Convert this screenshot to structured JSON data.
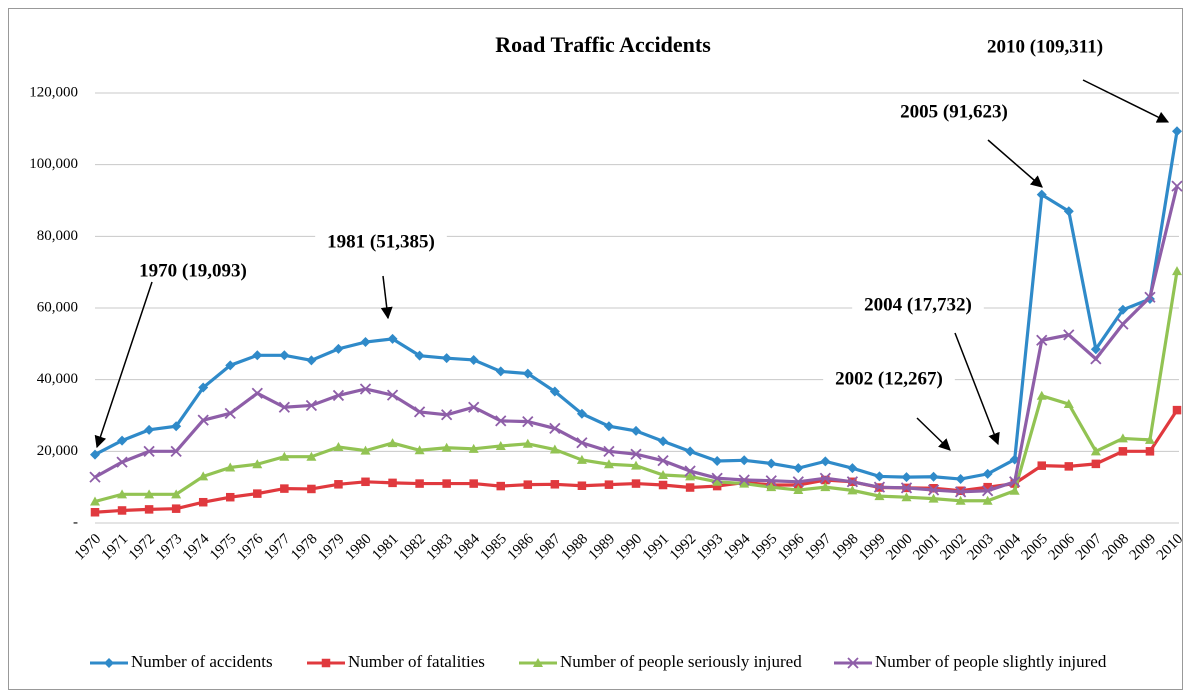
{
  "chart_data": {
    "type": "line",
    "title": "Road Traffic Accidents",
    "categories": [
      "1970",
      "1971",
      "1972",
      "1973",
      "1974",
      "1975",
      "1976",
      "1977",
      "1978",
      "1979",
      "1980",
      "1981",
      "1982",
      "1983",
      "1984",
      "1985",
      "1986",
      "1987",
      "1988",
      "1989",
      "1990",
      "1991",
      "1992",
      "1993",
      "1994",
      "1995",
      "1996",
      "1997",
      "1998",
      "1999",
      "2000",
      "2001",
      "2002",
      "2003",
      "2004",
      "2005",
      "2006",
      "2007",
      "2008",
      "2009",
      "2010"
    ],
    "series": [
      {
        "name": "Number of accidents",
        "color": "#2f8ac9",
        "marker": "diamond",
        "values": [
          19093,
          23000,
          26000,
          27000,
          37800,
          44000,
          46800,
          46800,
          45400,
          48600,
          50500,
          51385,
          46700,
          46000,
          45500,
          42300,
          41700,
          36700,
          30500,
          27000,
          25700,
          22800,
          20000,
          17300,
          17500,
          16600,
          15300,
          17200,
          15300,
          13000,
          12800,
          12900,
          12267,
          13700,
          17732,
          91623,
          87000,
          48500,
          59500,
          62500,
          109311
        ]
      },
      {
        "name": "Number of fatalities",
        "color": "#e0393e",
        "marker": "square",
        "values": [
          3000,
          3500,
          3800,
          4000,
          5800,
          7200,
          8200,
          9600,
          9500,
          10800,
          11500,
          11200,
          11000,
          11000,
          11000,
          10300,
          10700,
          10800,
          10400,
          10700,
          11000,
          10600,
          9900,
          10300,
          11300,
          10600,
          10600,
          12000,
          11500,
          9900,
          9800,
          9700,
          9000,
          10000,
          11000,
          16000,
          15800,
          16500,
          20000,
          20000,
          31500
        ]
      },
      {
        "name": "Number of people seriously injured",
        "color": "#92c353",
        "marker": "triangle",
        "values": [
          6000,
          8000,
          8000,
          8000,
          13000,
          15500,
          16400,
          18500,
          18500,
          21200,
          20200,
          22300,
          20300,
          21000,
          20700,
          21500,
          22100,
          20500,
          17600,
          16400,
          16000,
          13400,
          13000,
          11500,
          11000,
          10000,
          9200,
          10000,
          9100,
          7500,
          7200,
          6800,
          6200,
          6200,
          9000,
          35500,
          33200,
          20000,
          23600,
          23200,
          70300
        ]
      },
      {
        "name": "Number of people slightly injured",
        "color": "#8e5ea8",
        "marker": "x",
        "values": [
          12800,
          17000,
          20000,
          20000,
          28700,
          30600,
          36200,
          32300,
          32800,
          35600,
          37400,
          35700,
          31000,
          30200,
          32300,
          28500,
          28300,
          26400,
          22400,
          20000,
          19200,
          17400,
          14500,
          12500,
          12000,
          11800,
          11500,
          12500,
          11500,
          10000,
          9800,
          9200,
          8700,
          9000,
          11500,
          51000,
          52500,
          45800,
          55500,
          63000,
          94000
        ]
      }
    ],
    "ylim": [
      0,
      120000
    ],
    "yticks": [
      {
        "value": 0,
        "label": "-"
      },
      {
        "value": 20000,
        "label": "20,000"
      },
      {
        "value": 40000,
        "label": "40,000"
      },
      {
        "value": 60000,
        "label": "60,000"
      },
      {
        "value": 80000,
        "label": "80,000"
      },
      {
        "value": 100000,
        "label": "100,000"
      },
      {
        "value": 120000,
        "label": "120,000"
      }
    ],
    "grid": true,
    "legend": "bottom",
    "annotations": [
      "1970 (19,093)",
      "1981 (51,385)",
      "2002 (12,267)",
      "2004 (17,732)",
      "2005 (91,623)",
      "2010 (109,311)"
    ]
  }
}
